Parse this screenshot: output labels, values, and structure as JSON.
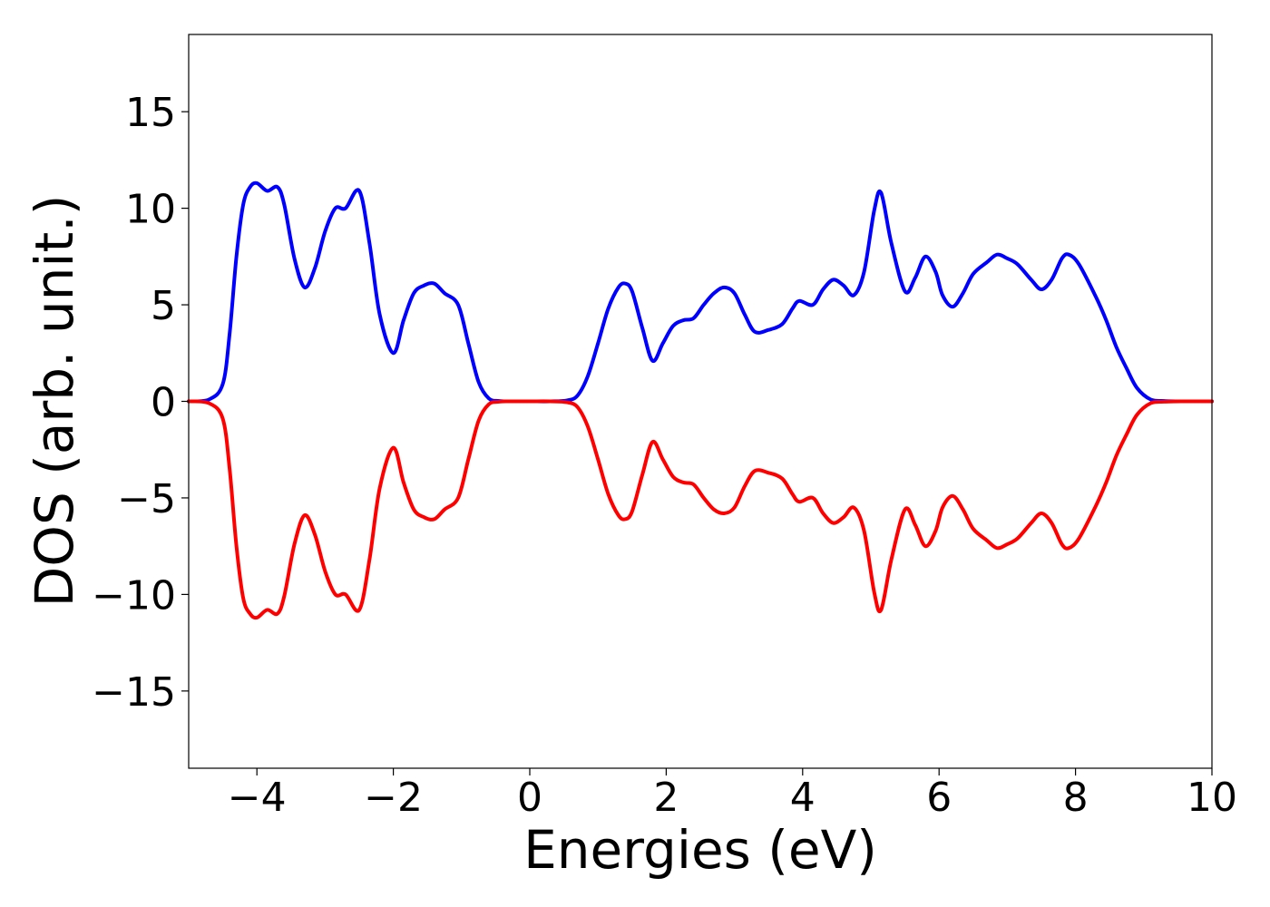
{
  "chart_data": {
    "type": "line",
    "title": "",
    "xlabel": "Energies (eV)",
    "ylabel": "DOS (arb. unit.)",
    "xlim": [
      -5,
      10
    ],
    "ylim": [
      -19,
      19
    ],
    "grid": false,
    "x_ticks": [
      -4,
      -2,
      0,
      2,
      4,
      6,
      8,
      10
    ],
    "x_tick_labels": [
      "−4",
      "−2",
      "0",
      "2",
      "4",
      "6",
      "8",
      "10"
    ],
    "y_ticks": [
      -15,
      -10,
      -5,
      0,
      5,
      10,
      15
    ],
    "y_tick_labels": [
      "−15",
      "−10",
      "−5",
      "0",
      "5",
      "10",
      "15"
    ],
    "series": [
      {
        "color": "#0000ff",
        "x": [
          -5.0,
          -4.7,
          -4.5,
          -4.4,
          -4.3,
          -4.2,
          -4.1,
          -4.0,
          -3.85,
          -3.7,
          -3.6,
          -3.45,
          -3.3,
          -3.15,
          -3.0,
          -2.85,
          -2.7,
          -2.5,
          -2.35,
          -2.2,
          -2.0,
          -1.85,
          -1.7,
          -1.55,
          -1.4,
          -1.25,
          -1.05,
          -0.9,
          -0.75,
          -0.6,
          -0.45,
          -0.3,
          0.0,
          0.3,
          0.55,
          0.7,
          0.85,
          1.0,
          1.15,
          1.3,
          1.4,
          1.5,
          1.65,
          1.8,
          1.95,
          2.1,
          2.25,
          2.4,
          2.55,
          2.7,
          2.85,
          3.0,
          3.15,
          3.3,
          3.5,
          3.7,
          3.85,
          3.95,
          4.15,
          4.3,
          4.45,
          4.6,
          4.75,
          4.9,
          5.05,
          5.15,
          5.3,
          5.5,
          5.65,
          5.8,
          5.95,
          6.05,
          6.2,
          6.35,
          6.5,
          6.7,
          6.85,
          7.0,
          7.15,
          7.35,
          7.5,
          7.65,
          7.8,
          7.9,
          8.05,
          8.3,
          8.45,
          8.6,
          8.75,
          8.9,
          9.1,
          9.3,
          9.6,
          10.0
        ],
        "y": [
          0,
          0.1,
          0.9,
          3.5,
          7.5,
          10.2,
          11.1,
          11.3,
          10.9,
          11.1,
          10.2,
          7.4,
          5.9,
          6.9,
          8.8,
          10.0,
          10.0,
          10.9,
          8.2,
          4.5,
          2.5,
          4.2,
          5.6,
          6.0,
          6.1,
          5.6,
          5.0,
          3.0,
          1.0,
          0.15,
          0.02,
          0,
          0,
          0,
          0.05,
          0.3,
          1.3,
          3.0,
          4.8,
          5.9,
          6.1,
          5.7,
          3.8,
          2.1,
          3.0,
          3.9,
          4.2,
          4.3,
          5.0,
          5.6,
          5.9,
          5.6,
          4.5,
          3.6,
          3.7,
          4.0,
          4.8,
          5.2,
          5.0,
          5.8,
          6.3,
          6.0,
          5.5,
          6.7,
          9.9,
          10.8,
          8.2,
          5.7,
          6.4,
          7.5,
          6.7,
          5.5,
          4.9,
          5.6,
          6.6,
          7.2,
          7.6,
          7.4,
          7.1,
          6.3,
          5.8,
          6.3,
          7.4,
          7.6,
          7.1,
          5.4,
          4.2,
          2.8,
          1.7,
          0.7,
          0.1,
          0.02,
          0,
          0
        ]
      },
      {
        "color": "#ff0000",
        "x": [
          -5.0,
          -4.7,
          -4.5,
          -4.4,
          -4.3,
          -4.2,
          -4.1,
          -4.0,
          -3.85,
          -3.7,
          -3.6,
          -3.45,
          -3.3,
          -3.15,
          -3.0,
          -2.85,
          -2.7,
          -2.5,
          -2.35,
          -2.2,
          -2.0,
          -1.85,
          -1.7,
          -1.55,
          -1.4,
          -1.25,
          -1.05,
          -0.9,
          -0.75,
          -0.6,
          -0.45,
          -0.3,
          0.0,
          0.3,
          0.55,
          0.7,
          0.85,
          1.0,
          1.15,
          1.3,
          1.4,
          1.5,
          1.65,
          1.8,
          1.95,
          2.1,
          2.25,
          2.4,
          2.55,
          2.7,
          2.85,
          3.0,
          3.15,
          3.3,
          3.5,
          3.7,
          3.85,
          3.95,
          4.15,
          4.3,
          4.45,
          4.6,
          4.75,
          4.9,
          5.05,
          5.15,
          5.3,
          5.5,
          5.65,
          5.8,
          5.95,
          6.05,
          6.2,
          6.35,
          6.5,
          6.7,
          6.85,
          7.0,
          7.15,
          7.35,
          7.5,
          7.65,
          7.8,
          7.9,
          8.05,
          8.3,
          8.45,
          8.6,
          8.75,
          8.9,
          9.1,
          9.3,
          9.6,
          10.0
        ],
        "y": [
          0,
          -0.1,
          -0.9,
          -3.5,
          -7.5,
          -10.2,
          -11.0,
          -11.2,
          -10.8,
          -11.0,
          -10.1,
          -7.4,
          -5.9,
          -6.9,
          -8.8,
          -10.0,
          -10.0,
          -10.8,
          -8.2,
          -4.5,
          -2.4,
          -4.2,
          -5.6,
          -6.0,
          -6.1,
          -5.6,
          -5.0,
          -3.0,
          -1.0,
          -0.15,
          -0.02,
          0,
          0,
          0,
          -0.05,
          -0.3,
          -1.3,
          -3.0,
          -4.8,
          -5.9,
          -6.1,
          -5.7,
          -3.8,
          -2.1,
          -3.0,
          -3.9,
          -4.2,
          -4.3,
          -5.0,
          -5.6,
          -5.8,
          -5.5,
          -4.4,
          -3.6,
          -3.7,
          -4.0,
          -4.8,
          -5.2,
          -5.0,
          -5.8,
          -6.3,
          -6.0,
          -5.5,
          -6.7,
          -9.9,
          -10.8,
          -8.2,
          -5.6,
          -6.4,
          -7.5,
          -6.7,
          -5.5,
          -4.9,
          -5.6,
          -6.6,
          -7.2,
          -7.6,
          -7.4,
          -7.1,
          -6.3,
          -5.8,
          -6.3,
          -7.4,
          -7.6,
          -7.1,
          -5.4,
          -4.2,
          -2.8,
          -1.7,
          -0.7,
          -0.1,
          -0.02,
          0,
          0
        ]
      }
    ]
  }
}
